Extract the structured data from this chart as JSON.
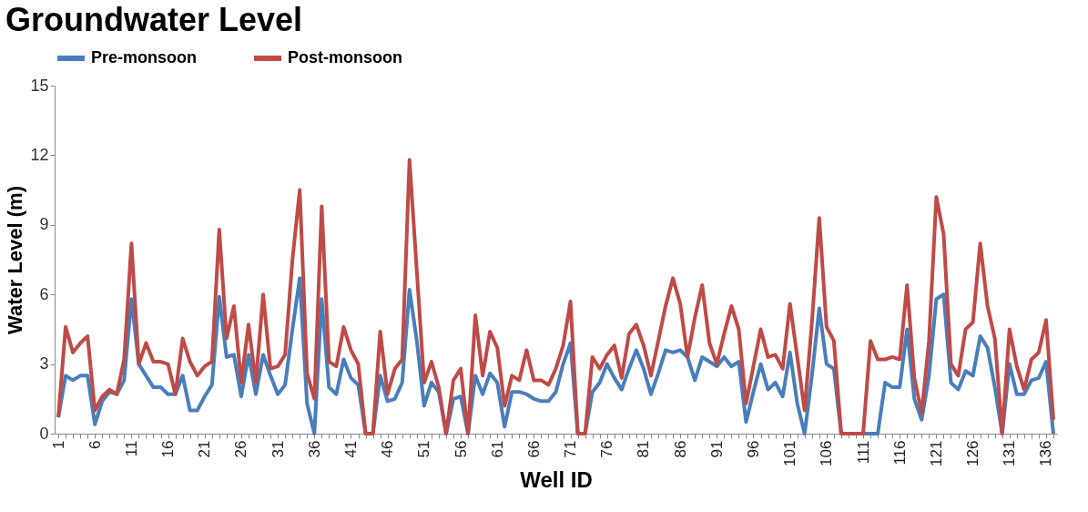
{
  "chart_data": {
    "type": "line",
    "title": "Groundwater Level",
    "xlabel": "Well ID",
    "ylabel": "Water Level (m)",
    "categories": [
      "1",
      null,
      null,
      null,
      null,
      "6",
      null,
      null,
      null,
      null,
      "11",
      null,
      null,
      null,
      null,
      "16",
      null,
      null,
      null,
      null,
      "21",
      null,
      null,
      null,
      null,
      "26",
      null,
      null,
      null,
      null,
      "31",
      null,
      null,
      null,
      null,
      "36",
      null,
      null,
      null,
      null,
      "41",
      null,
      null,
      null,
      null,
      "46",
      null,
      null,
      null,
      null,
      "51",
      null,
      null,
      null,
      null,
      "56",
      null,
      null,
      null,
      null,
      "61",
      null,
      null,
      null,
      null,
      "66",
      null,
      null,
      null,
      null,
      "71",
      null,
      null,
      null,
      null,
      "76",
      null,
      null,
      null,
      null,
      "81",
      null,
      null,
      null,
      null,
      "86",
      null,
      null,
      null,
      null,
      "91",
      null,
      null,
      null,
      null,
      "96",
      null,
      null,
      null,
      null,
      "101",
      null,
      null,
      null,
      null,
      "106",
      null,
      null,
      null,
      null,
      "111",
      null,
      null,
      null,
      null,
      "116",
      null,
      null,
      null,
      null,
      "121",
      null,
      null,
      null,
      null,
      "126",
      null,
      null,
      null,
      null,
      "131",
      null,
      null,
      null,
      null,
      "136",
      null
    ],
    "series": [
      {
        "name": "Pre-monsoon",
        "color": "#4a7ebb",
        "values": [
          0.7,
          2.5,
          2.3,
          2.5,
          2.5,
          0.4,
          1.4,
          1.8,
          1.7,
          2.3,
          5.8,
          3.0,
          2.5,
          2.0,
          2.0,
          1.7,
          1.7,
          2.5,
          1.0,
          1.0,
          1.6,
          2.1,
          5.9,
          3.3,
          3.4,
          1.6,
          3.4,
          1.7,
          3.4,
          2.5,
          1.7,
          2.1,
          4.5,
          6.7,
          1.3,
          0,
          5.8,
          2.0,
          1.7,
          3.2,
          2.4,
          2.1,
          0,
          0,
          2.5,
          1.4,
          1.5,
          2.2,
          6.2,
          4.0,
          1.2,
          2.2,
          1.8,
          0,
          1.5,
          1.6,
          0,
          2.5,
          1.7,
          2.6,
          2.2,
          0.3,
          1.8,
          1.8,
          1.7,
          1.5,
          1.4,
          1.4,
          1.8,
          3.0,
          3.9,
          0,
          0,
          1.8,
          2.2,
          3.0,
          2.4,
          1.9,
          2.8,
          3.6,
          2.8,
          1.7,
          2.6,
          3.6,
          3.5,
          3.6,
          3.3,
          2.3,
          3.3,
          3.1,
          2.9,
          3.3,
          2.9,
          3.1,
          0.5,
          1.8,
          3.0,
          1.9,
          2.2,
          1.6,
          3.5,
          1.3,
          0,
          2.5,
          5.4,
          3.0,
          2.8,
          0,
          0,
          0,
          0,
          0,
          0,
          2.2,
          2.0,
          2.0,
          4.5,
          1.5,
          0.6,
          2.5,
          5.8,
          6.0,
          2.2,
          1.9,
          2.7,
          2.5,
          4.2,
          3.7,
          2.0,
          0,
          3.0,
          1.7,
          1.7,
          2.3,
          2.4,
          3.1,
          0
        ]
      },
      {
        "name": "Post-monsoon",
        "color": "#be4b48",
        "values": [
          0.7,
          4.6,
          3.5,
          3.9,
          4.2,
          1.0,
          1.6,
          1.9,
          1.7,
          3.2,
          8.2,
          3.0,
          3.9,
          3.1,
          3.1,
          3.0,
          1.7,
          4.1,
          3.1,
          2.5,
          2.9,
          3.1,
          8.8,
          4.1,
          5.5,
          2.2,
          4.7,
          2.2,
          6.0,
          2.8,
          2.9,
          3.4,
          7.5,
          10.5,
          2.6,
          1.5,
          9.8,
          3.1,
          2.9,
          4.6,
          3.6,
          3.0,
          0,
          0,
          4.4,
          1.7,
          2.8,
          3.2,
          11.8,
          7.0,
          2.2,
          3.1,
          2.0,
          0,
          2.3,
          2.8,
          0,
          5.1,
          2.5,
          4.4,
          3.7,
          1.2,
          2.5,
          2.3,
          3.6,
          2.3,
          2.3,
          2.1,
          2.8,
          3.8,
          5.7,
          0,
          0,
          3.3,
          2.8,
          3.4,
          3.8,
          2.4,
          4.3,
          4.7,
          3.8,
          2.5,
          4.0,
          5.5,
          6.7,
          5.6,
          3.3,
          5.0,
          6.4,
          3.9,
          3.0,
          4.3,
          5.5,
          4.5,
          1.3,
          2.9,
          4.5,
          3.3,
          3.4,
          2.8,
          5.6,
          3.3,
          1.0,
          4.8,
          9.3,
          4.6,
          4.0,
          0,
          0,
          0,
          0,
          4.0,
          3.2,
          3.2,
          3.3,
          3.2,
          6.4,
          2.4,
          0.9,
          4.0,
          10.2,
          8.6,
          3.0,
          2.5,
          4.5,
          4.8,
          8.2,
          5.5,
          4.1,
          0,
          4.5,
          2.9,
          1.9,
          3.2,
          3.5,
          4.9,
          0.6
        ]
      }
    ],
    "ylim": [
      0,
      15
    ],
    "yticks": [
      0,
      3,
      6,
      9,
      12,
      15
    ],
    "grid": false,
    "legend": "top",
    "line_style": "solid",
    "marker": "none"
  }
}
